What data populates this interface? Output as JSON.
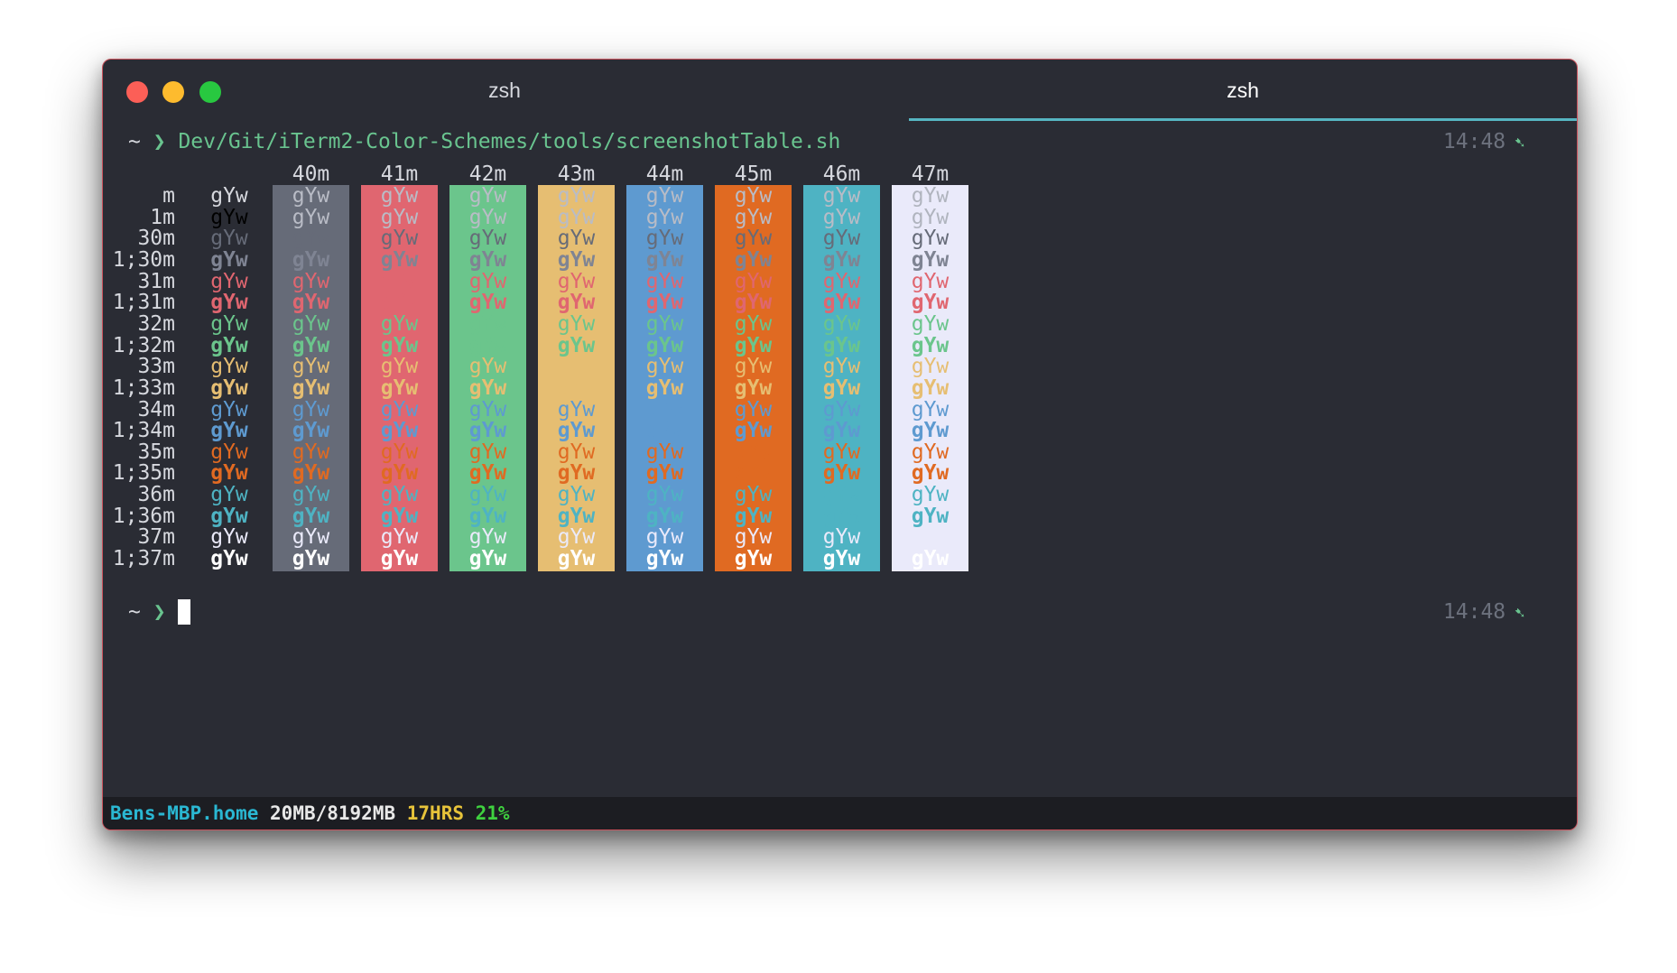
{
  "window": {
    "tabs": [
      {
        "label": "zsh",
        "active": false
      },
      {
        "label": "zsh",
        "active": true
      }
    ]
  },
  "prompt1": {
    "tilde": "~",
    "chevron": "❯",
    "command": "Dev/Git/iTerm2-Color-Schemes/tools/screenshotTable.sh",
    "time": "14:48",
    "time_icon": "check-tick-icon"
  },
  "prompt2": {
    "tilde": "~",
    "chevron": "❯",
    "time": "14:48",
    "time_icon": "check-tick-icon"
  },
  "table": {
    "sample": "gYw",
    "rows": [
      "m",
      "1m",
      "30m",
      "1;30m",
      "31m",
      "1;31m",
      "32m",
      "1;32m",
      "33m",
      "1;33m",
      "34m",
      "1;34m",
      "35m",
      "1;35m",
      "36m",
      "1;36m",
      "37m",
      "1;37m"
    ],
    "columns": [
      "40m",
      "41m",
      "42m",
      "43m",
      "44m",
      "45m",
      "46m",
      "47m"
    ],
    "column_colors": [
      "#666b78",
      "#e06670",
      "#6bc58c",
      "#e6be72",
      "#5e9ad0",
      "#e06a22",
      "#4eb3c3",
      "#eaeafa"
    ],
    "fg_colors": {
      "default": "#d6d8de",
      "30": "#666b78",
      "31": "#e06670",
      "32": "#6bc58c",
      "33": "#e6be72",
      "34": "#5e9ad0",
      "35": "#e06a22",
      "36": "#4eb3c3",
      "37": "#eaeafa",
      "bold_default": "#ffffff",
      "bold_30": "#7f8493",
      "bold_37": "#ffffff",
      "dim_default": "#b0b4be"
    }
  },
  "statusbar": {
    "host": "Bens-MBP.home",
    "memory": "20MB/8192MB",
    "hours": "17HRS",
    "battery": "21%"
  }
}
